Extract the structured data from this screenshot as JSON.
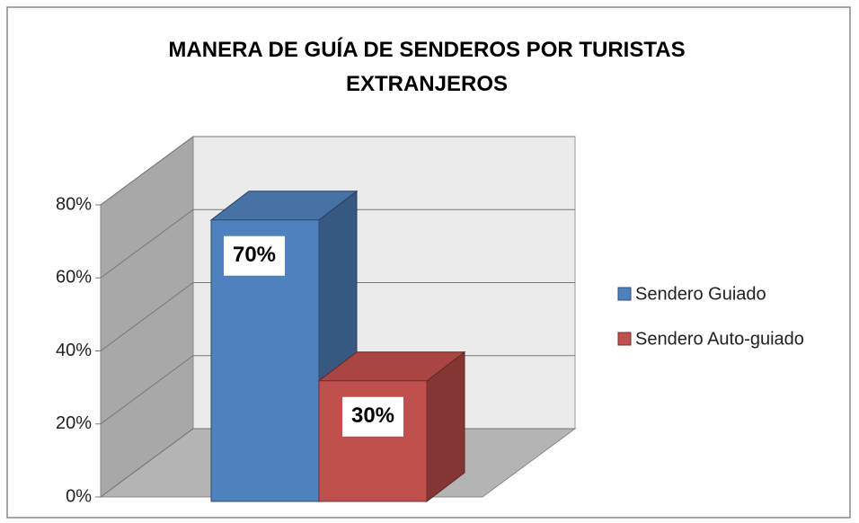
{
  "chart_data": {
    "type": "bar3d",
    "title": "MANERA DE GUÍA DE SENDEROS POR TURISTAS EXTRANJEROS",
    "series": [
      {
        "name": "Sendero Guiado",
        "color": "#4f81bd",
        "values": [
          70
        ],
        "value_labels": [
          "70%"
        ]
      },
      {
        "name": "Sendero Auto-guiado",
        "color": "#c0504d",
        "values": [
          30
        ],
        "value_labels": [
          "30%"
        ]
      }
    ],
    "ylim": [
      0,
      80
    ],
    "yticks": [
      {
        "value": 0,
        "label": "0%"
      },
      {
        "value": 20,
        "label": "20%"
      },
      {
        "value": 40,
        "label": "40%"
      },
      {
        "value": 60,
        "label": "60%"
      },
      {
        "value": 80,
        "label": "80%"
      }
    ],
    "grid": true,
    "legend": "right"
  }
}
